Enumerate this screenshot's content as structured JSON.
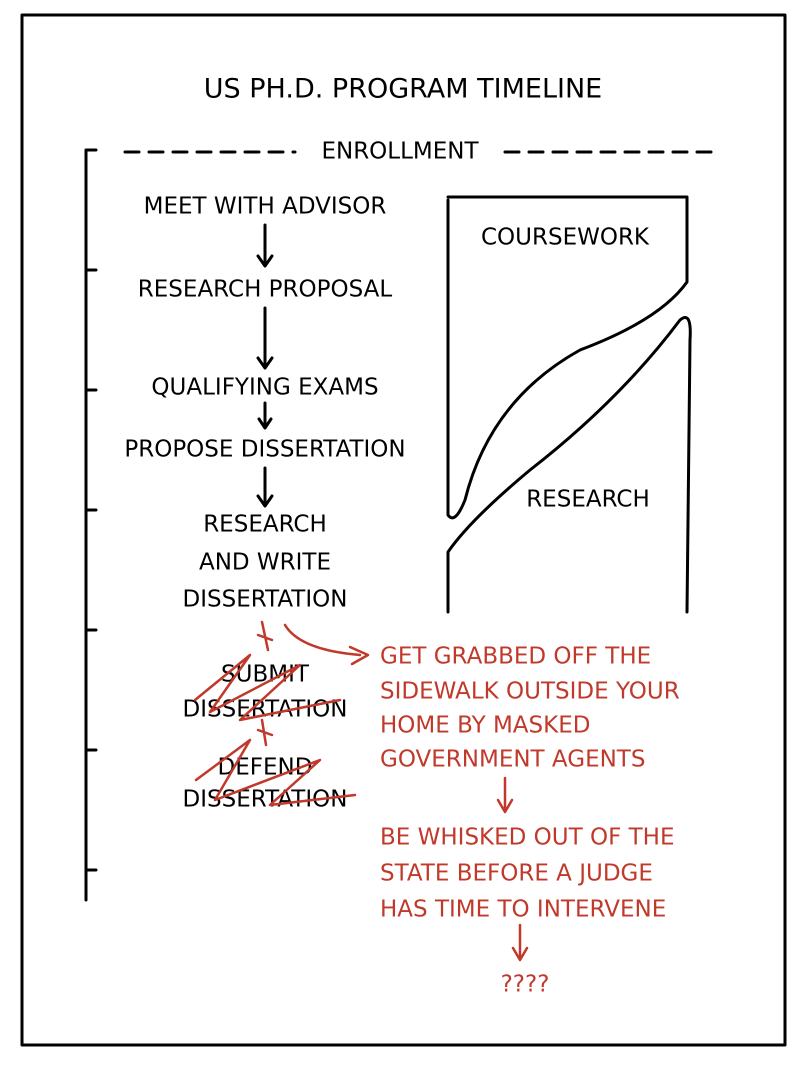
{
  "header": {
    "title": "US PH.D. PROGRAM TIMELINE"
  },
  "timeline": {
    "start": "ENROLLMENT",
    "steps": [
      [
        "MEET WITH ADVISOR"
      ],
      [
        "RESEARCH PROPOSAL"
      ],
      [
        "QUALIFYING EXAMS"
      ],
      [
        "PROPOSE DISSERTATION"
      ],
      [
        "RESEARCH",
        "AND WRITE",
        "DISSERTATION"
      ]
    ],
    "crossed_steps": [
      [
        "SUBMIT",
        "DISSERTATION"
      ],
      [
        "DEFEND",
        "DISSERTATION"
      ]
    ]
  },
  "phases": {
    "top": "COURSEWORK",
    "bottom": "RESEARCH"
  },
  "alternate": {
    "steps": [
      [
        "GET GRABBED OFF THE",
        "SIDEWALK OUTSIDE YOUR",
        "HOME BY MASKED",
        "GOVERNMENT AGENTS"
      ],
      [
        "BE WHISKED OUT OF THE",
        "STATE BEFORE A JUDGE",
        "HAS TIME TO INTERVENE"
      ],
      [
        "????"
      ]
    ]
  }
}
